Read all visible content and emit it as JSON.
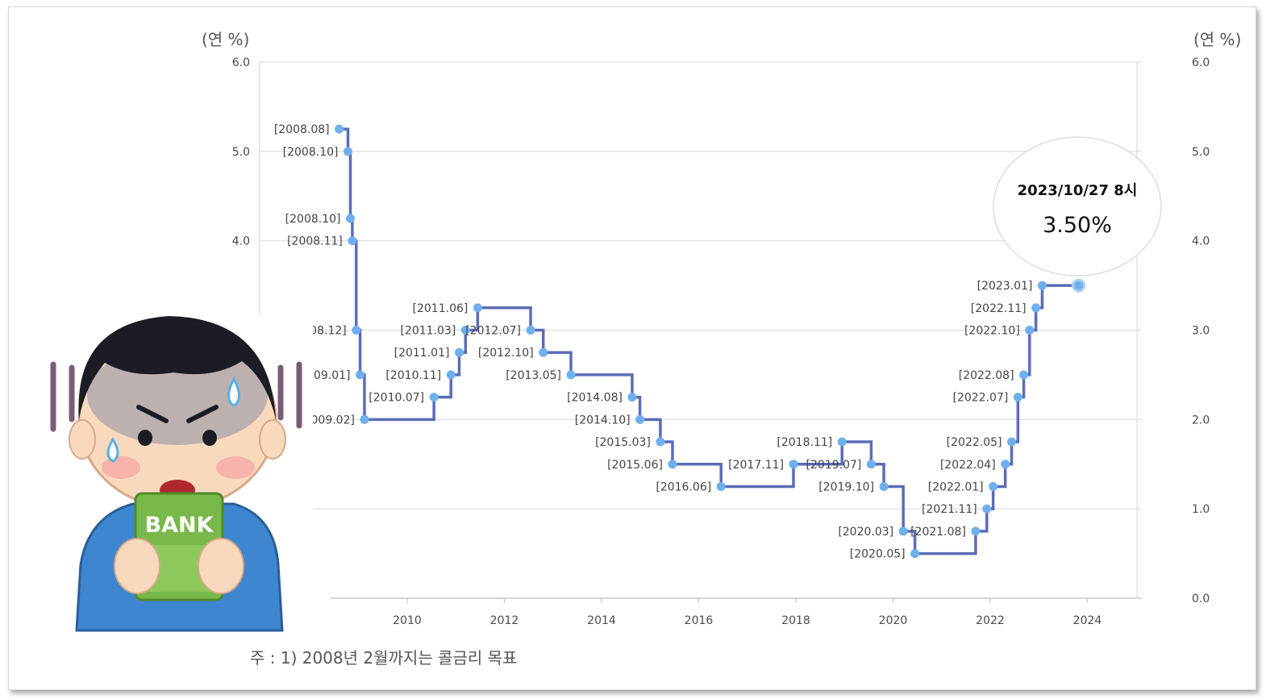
{
  "chart_data": {
    "type": "line",
    "step": true,
    "yunit_left": "(연 %)",
    "yunit_right": "(연 %)",
    "ylim": [
      0,
      6
    ],
    "yticks": [
      "0.0",
      "1.0",
      "2.0",
      "3.0",
      "4.0",
      "5.0",
      "6.0"
    ],
    "xlim": [
      2008.0,
      2025.0
    ],
    "xticks": [
      "2010",
      "2012",
      "2014",
      "2016",
      "2018",
      "2020",
      "2022",
      "2024"
    ],
    "grid": true,
    "line_color": "#5b6db8",
    "marker_color": "#6fb0ec",
    "points": [
      {
        "label": "[2008.08]",
        "x": 2008.6,
        "y": 5.25
      },
      {
        "label": "[2008.10]",
        "x": 2008.78,
        "y": 5.0
      },
      {
        "label": "[2008.10]",
        "x": 2008.83,
        "y": 4.25
      },
      {
        "label": "[2008.11]",
        "x": 2008.87,
        "y": 4.0
      },
      {
        "label": "[2008.12]",
        "x": 2008.95,
        "y": 3.0
      },
      {
        "label": "[2009.01]",
        "x": 2009.03,
        "y": 2.5
      },
      {
        "label": "[2009.02]",
        "x": 2009.12,
        "y": 2.0
      },
      {
        "label": "[2010.07]",
        "x": 2010.55,
        "y": 2.25
      },
      {
        "label": "[2010.11]",
        "x": 2010.9,
        "y": 2.5
      },
      {
        "label": "[2011.01]",
        "x": 2011.07,
        "y": 2.75
      },
      {
        "label": "[2011.03]",
        "x": 2011.2,
        "y": 3.0
      },
      {
        "label": "[2011.06]",
        "x": 2011.45,
        "y": 3.25
      },
      {
        "label": "[2012.07]",
        "x": 2012.54,
        "y": 3.0
      },
      {
        "label": "[2012.10]",
        "x": 2012.8,
        "y": 2.75
      },
      {
        "label": "[2013.05]",
        "x": 2013.37,
        "y": 2.5
      },
      {
        "label": "[2014.08]",
        "x": 2014.63,
        "y": 2.25
      },
      {
        "label": "[2014.10]",
        "x": 2014.79,
        "y": 2.0
      },
      {
        "label": "[2015.03]",
        "x": 2015.21,
        "y": 1.75
      },
      {
        "label": "[2015.06]",
        "x": 2015.46,
        "y": 1.5
      },
      {
        "label": "[2016.06]",
        "x": 2016.46,
        "y": 1.25
      },
      {
        "label": "[2017.11]",
        "x": 2017.95,
        "y": 1.5
      },
      {
        "label": "[2018.11]",
        "x": 2018.95,
        "y": 1.75
      },
      {
        "label": "[2019.07]",
        "x": 2019.55,
        "y": 1.5
      },
      {
        "label": "[2019.10]",
        "x": 2019.81,
        "y": 1.25
      },
      {
        "label": "[2020.03]",
        "x": 2020.21,
        "y": 0.75
      },
      {
        "label": "[2020.05]",
        "x": 2020.45,
        "y": 0.5
      },
      {
        "label": "[2021.08]",
        "x": 2021.7,
        "y": 0.75
      },
      {
        "label": "[2021.11]",
        "x": 2021.93,
        "y": 1.0
      },
      {
        "label": "[2022.01]",
        "x": 2022.06,
        "y": 1.25
      },
      {
        "label": "[2022.04]",
        "x": 2022.31,
        "y": 1.5
      },
      {
        "label": "[2022.05]",
        "x": 2022.44,
        "y": 1.75
      },
      {
        "label": "[2022.07]",
        "x": 2022.57,
        "y": 2.25
      },
      {
        "label": "[2022.08]",
        "x": 2022.69,
        "y": 2.5
      },
      {
        "label": "[2022.10]",
        "x": 2022.81,
        "y": 3.0
      },
      {
        "label": "[2022.11]",
        "x": 2022.94,
        "y": 3.25
      },
      {
        "label": "[2023.01]",
        "x": 2023.07,
        "y": 3.5
      }
    ],
    "last_point": {
      "x": 2023.82,
      "y": 3.5
    },
    "tooltip": {
      "date": "2023/10/27 8시",
      "value": "3.50%"
    }
  },
  "note": "주 : 1) 2008년 2월까지는 콜금리 목표",
  "illustration": {
    "book_text": "BANK"
  }
}
